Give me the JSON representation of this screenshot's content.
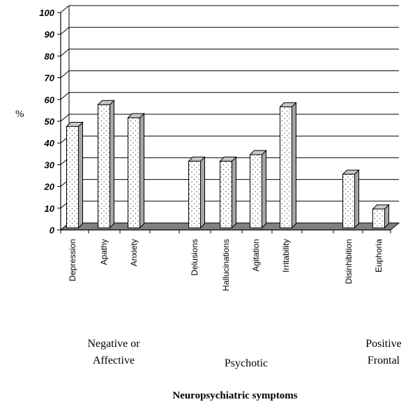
{
  "chart_data": {
    "type": "bar",
    "title": "",
    "xlabel": "Neuropsychiatric symptoms",
    "ylabel": "%",
    "ylim": [
      0,
      100
    ],
    "yticks": [
      "0",
      "10",
      "20",
      "30",
      "40",
      "50",
      "60",
      "70",
      "80",
      "90",
      "100"
    ],
    "grid": true,
    "categories": [
      "Depression",
      "Apathy",
      "Anxiety",
      "Delusions",
      "Hallucinations",
      "Agitation",
      "Irritability",
      "Disinhibition",
      "Euphoria"
    ],
    "values": [
      46,
      56,
      50,
      30,
      30,
      33,
      55,
      24,
      8
    ],
    "groups": [
      {
        "label_lines": [
          "Negative or",
          "Affective"
        ]
      },
      {
        "label_lines": [
          "Psychotic"
        ]
      },
      {
        "label_lines": [
          "Positive",
          "Frontal"
        ]
      }
    ]
  }
}
